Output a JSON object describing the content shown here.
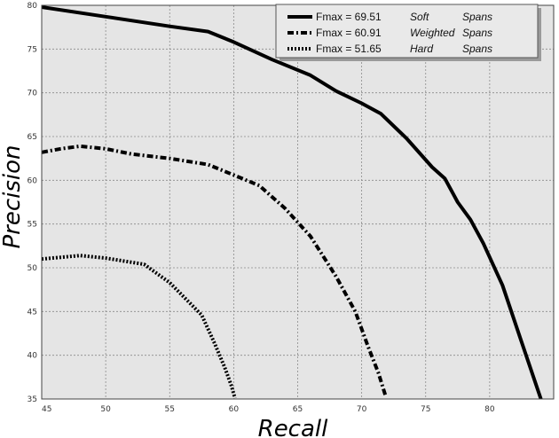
{
  "chart_data": {
    "type": "line",
    "title": "",
    "xlabel": "Recall",
    "ylabel": "Precision",
    "xlim": [
      45,
      85
    ],
    "ylim": [
      35,
      80
    ],
    "xticks": [
      45,
      50,
      55,
      60,
      65,
      70,
      75,
      80
    ],
    "yticks": [
      35,
      40,
      45,
      50,
      55,
      60,
      65,
      70,
      75,
      80
    ],
    "grid": true,
    "legend_position": "top-right",
    "series": [
      {
        "label": "Fmax = 69.51",
        "method": "Soft",
        "kind": "Spans",
        "style": "solid",
        "x": [
          45,
          50,
          55,
          58,
          60,
          63,
          66,
          68,
          70,
          71.5,
          73.5,
          75.5,
          76.5,
          77.5,
          78.5,
          79.5,
          81,
          82.5,
          84
        ],
        "y": [
          79.8,
          78.7,
          77.6,
          77.0,
          75.8,
          73.8,
          72.0,
          70.2,
          68.8,
          67.6,
          64.8,
          61.5,
          60.2,
          57.5,
          55.5,
          52.8,
          48.0,
          41.5,
          35.0
        ]
      },
      {
        "label": "Fmax = 60.91",
        "method": "Weighted",
        "kind": "Spans",
        "style": "dash-dot",
        "x": [
          45,
          46.5,
          48,
          50,
          52,
          55,
          58,
          60,
          62,
          64,
          66,
          68,
          69.5,
          70.5,
          71.3,
          71.9
        ],
        "y": [
          63.2,
          63.6,
          63.9,
          63.6,
          63.0,
          62.5,
          61.8,
          60.6,
          59.4,
          56.8,
          53.6,
          49.0,
          45.0,
          41.0,
          38.0,
          35.2
        ]
      },
      {
        "label": "Fmax = 51.65",
        "method": "Hard",
        "kind": "Spans",
        "style": "dotted",
        "x": [
          45,
          46.5,
          48,
          50,
          53,
          55,
          57.5,
          58.5,
          59.3,
          59.8,
          60.1
        ],
        "y": [
          51.0,
          51.2,
          51.4,
          51.1,
          50.4,
          48.3,
          44.6,
          41.4,
          38.6,
          36.6,
          35.1
        ]
      }
    ]
  }
}
